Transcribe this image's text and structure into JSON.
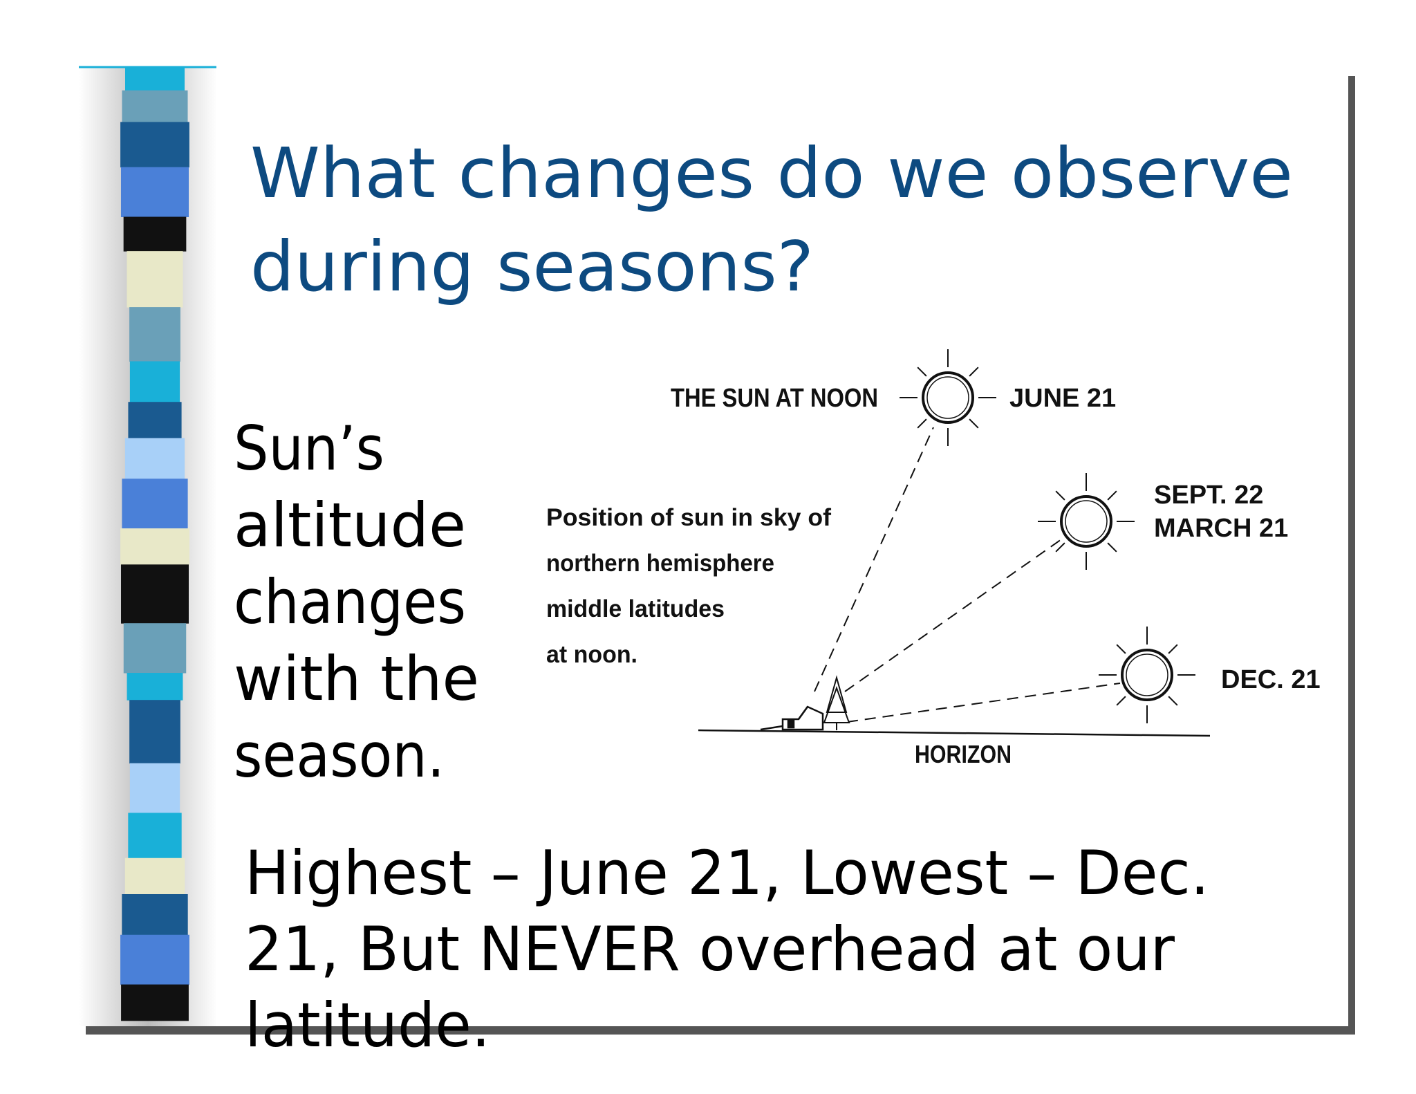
{
  "title": [
    "What changes do we observe",
    "during seasons?"
  ],
  "body": [
    "Sun’s",
    "altitude",
    "changes",
    "with the",
    "season."
  ],
  "diagram": {
    "heading": "THE SUN AT NOON",
    "caption": [
      "Position of sun in sky of",
      "northern hemisphere",
      "middle latitudes",
      "at noon."
    ],
    "suns": [
      {
        "label": [
          "JUNE 21"
        ]
      },
      {
        "label": [
          "SEPT. 22",
          "MARCH 21"
        ]
      },
      {
        "label": [
          "DEC. 21"
        ]
      }
    ],
    "horizon": "HORIZON"
  },
  "footer": [
    "Highest – June 21, Lowest – Dec.",
    "21, But NEVER overhead at our",
    "latitude."
  ]
}
